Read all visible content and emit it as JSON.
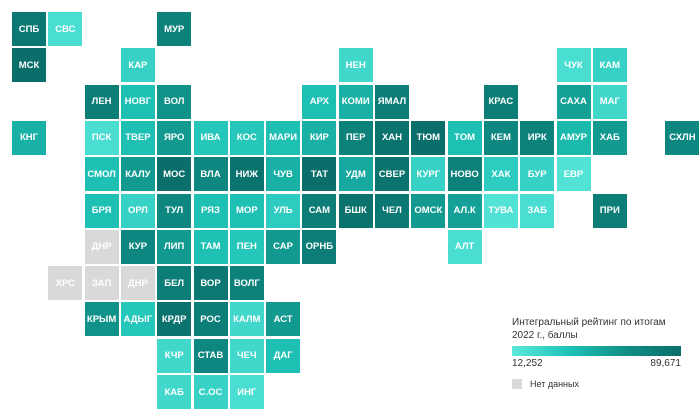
{
  "colors": {
    "low": "#5ce8dc",
    "high": "#0a6e6a",
    "nodata": "#d9d9d9"
  },
  "legend": {
    "title": "Интегральный рейтинг по итогам 2022 г., баллы",
    "min_label": "12,252",
    "max_label": "89,671",
    "nodata_label": "Нет данных"
  },
  "regions": [
    {
      "label": "СПБ",
      "col": 0,
      "row": 0,
      "v": 0.9
    },
    {
      "label": "СВС",
      "col": 1,
      "row": 0,
      "v": 0.1
    },
    {
      "label": "МУР",
      "col": 4,
      "row": 0,
      "v": 0.8
    },
    {
      "label": "МСК",
      "col": 0,
      "row": 1,
      "v": 1.0
    },
    {
      "label": "КАР",
      "col": 3,
      "row": 1,
      "v": 0.2
    },
    {
      "label": "НЕН",
      "col": 9,
      "row": 1,
      "v": 0.15
    },
    {
      "label": "ЧУК",
      "col": 15,
      "row": 1,
      "v": 0.1
    },
    {
      "label": "КАМ",
      "col": 16,
      "row": 1,
      "v": 0.2
    },
    {
      "label": "ЛЕН",
      "col": 2,
      "row": 2,
      "v": 0.85
    },
    {
      "label": "НОВГ",
      "col": 3,
      "row": 2,
      "v": 0.35
    },
    {
      "label": "ВОЛ",
      "col": 4,
      "row": 2,
      "v": 0.65
    },
    {
      "label": "АРХ",
      "col": 8,
      "row": 2,
      "v": 0.35
    },
    {
      "label": "КОМИ",
      "col": 9,
      "row": 2,
      "v": 0.45
    },
    {
      "label": "ЯМАЛ",
      "col": 10,
      "row": 2,
      "v": 0.85
    },
    {
      "label": "КРАС",
      "col": 13,
      "row": 2,
      "v": 0.85
    },
    {
      "label": "САХА",
      "col": 15,
      "row": 2,
      "v": 0.55
    },
    {
      "label": "МАГ",
      "col": 16,
      "row": 2,
      "v": 0.15
    },
    {
      "label": "КНГ",
      "col": 0,
      "row": 3,
      "v": 0.45
    },
    {
      "label": "ПСК",
      "col": 2,
      "row": 3,
      "v": 0.1
    },
    {
      "label": "ТВЕР",
      "col": 3,
      "row": 3,
      "v": 0.35
    },
    {
      "label": "ЯРО",
      "col": 4,
      "row": 3,
      "v": 0.6
    },
    {
      "label": "ИВА",
      "col": 5,
      "row": 3,
      "v": 0.3
    },
    {
      "label": "КОС",
      "col": 6,
      "row": 3,
      "v": 0.3
    },
    {
      "label": "МАРИ",
      "col": 7,
      "row": 3,
      "v": 0.35
    },
    {
      "label": "КИР",
      "col": 8,
      "row": 3,
      "v": 0.45
    },
    {
      "label": "ПЕР",
      "col": 9,
      "row": 3,
      "v": 0.8
    },
    {
      "label": "ХАН",
      "col": 10,
      "row": 3,
      "v": 0.95
    },
    {
      "label": "ТЮМ",
      "col": 11,
      "row": 3,
      "v": 1.0
    },
    {
      "label": "ТОМ",
      "col": 12,
      "row": 3,
      "v": 0.35
    },
    {
      "label": "КЕМ",
      "col": 13,
      "row": 3,
      "v": 0.75
    },
    {
      "label": "ИРК",
      "col": 14,
      "row": 3,
      "v": 0.8
    },
    {
      "label": "АМУР",
      "col": 15,
      "row": 3,
      "v": 0.4
    },
    {
      "label": "ХАБ",
      "col": 16,
      "row": 3,
      "v": 0.6
    },
    {
      "label": "СХЛН",
      "col": 18,
      "row": 3,
      "v": 0.75
    },
    {
      "label": "СМОЛ",
      "col": 2,
      "row": 4,
      "v": 0.35
    },
    {
      "label": "КАЛУ",
      "col": 3,
      "row": 4,
      "v": 0.6
    },
    {
      "label": "МОС",
      "col": 4,
      "row": 4,
      "v": 1.0
    },
    {
      "label": "ВЛА",
      "col": 5,
      "row": 4,
      "v": 0.75
    },
    {
      "label": "НИЖ",
      "col": 6,
      "row": 4,
      "v": 0.95
    },
    {
      "label": "ЧУВ",
      "col": 7,
      "row": 4,
      "v": 0.45
    },
    {
      "label": "ТАТ",
      "col": 8,
      "row": 4,
      "v": 1.0
    },
    {
      "label": "УДМ",
      "col": 9,
      "row": 4,
      "v": 0.5
    },
    {
      "label": "СВЕР",
      "col": 10,
      "row": 4,
      "v": 0.95
    },
    {
      "label": "КУРГ",
      "col": 11,
      "row": 4,
      "v": 0.2
    },
    {
      "label": "НОВО",
      "col": 12,
      "row": 4,
      "v": 0.8
    },
    {
      "label": "ХАК",
      "col": 13,
      "row": 4,
      "v": 0.25
    },
    {
      "label": "БУР",
      "col": 14,
      "row": 4,
      "v": 0.2
    },
    {
      "label": "ЕВР",
      "col": 15,
      "row": 4,
      "v": 0.05
    },
    {
      "label": "БРЯ",
      "col": 2,
      "row": 5,
      "v": 0.35
    },
    {
      "label": "ОРЛ",
      "col": 3,
      "row": 5,
      "v": 0.2
    },
    {
      "label": "ТУЛ",
      "col": 4,
      "row": 5,
      "v": 0.75
    },
    {
      "label": "РЯЗ",
      "col": 5,
      "row": 5,
      "v": 0.35
    },
    {
      "label": "МОР",
      "col": 6,
      "row": 5,
      "v": 0.35
    },
    {
      "label": "УЛЬ",
      "col": 7,
      "row": 5,
      "v": 0.25
    },
    {
      "label": "САМ",
      "col": 8,
      "row": 5,
      "v": 0.85
    },
    {
      "label": "БШК",
      "col": 9,
      "row": 5,
      "v": 0.95
    },
    {
      "label": "ЧЕЛ",
      "col": 10,
      "row": 5,
      "v": 0.9
    },
    {
      "label": "ОМСК",
      "col": 11,
      "row": 5,
      "v": 0.6
    },
    {
      "label": "АЛ.К",
      "col": 12,
      "row": 5,
      "v": 0.55
    },
    {
      "label": "ТУВА",
      "col": 13,
      "row": 5,
      "v": 0.05
    },
    {
      "label": "ЗАБ",
      "col": 14,
      "row": 5,
      "v": 0.1
    },
    {
      "label": "ПРИ",
      "col": 16,
      "row": 5,
      "v": 0.85
    },
    {
      "label": "ДНР",
      "col": 2,
      "row": 6,
      "v": null
    },
    {
      "label": "КУР",
      "col": 3,
      "row": 6,
      "v": 0.75
    },
    {
      "label": "ЛИП",
      "col": 4,
      "row": 6,
      "v": 0.6
    },
    {
      "label": "ТАМ",
      "col": 5,
      "row": 6,
      "v": 0.35
    },
    {
      "label": "ПЕН",
      "col": 6,
      "row": 6,
      "v": 0.3
    },
    {
      "label": "САР",
      "col": 7,
      "row": 6,
      "v": 0.6
    },
    {
      "label": "ОРНБ",
      "col": 8,
      "row": 6,
      "v": 0.85
    },
    {
      "label": "АЛТ",
      "col": 12,
      "row": 6,
      "v": 0.1
    },
    {
      "label": "ХРС",
      "col": 1,
      "row": 7,
      "v": null
    },
    {
      "label": "ЗАП",
      "col": 2,
      "row": 7,
      "v": null
    },
    {
      "label": "ДНР",
      "col": 3,
      "row": 7,
      "v": null
    },
    {
      "label": "БЕЛ",
      "col": 4,
      "row": 7,
      "v": 0.85
    },
    {
      "label": "ВОР",
      "col": 5,
      "row": 7,
      "v": 0.9
    },
    {
      "label": "ВОЛГ",
      "col": 6,
      "row": 7,
      "v": 0.8
    },
    {
      "label": "КРЫМ",
      "col": 2,
      "row": 8,
      "v": 0.65
    },
    {
      "label": "АДЫГ",
      "col": 3,
      "row": 8,
      "v": 0.3
    },
    {
      "label": "КРДР",
      "col": 4,
      "row": 8,
      "v": 0.95
    },
    {
      "label": "РОС",
      "col": 5,
      "row": 8,
      "v": 0.85
    },
    {
      "label": "КАЛМ",
      "col": 6,
      "row": 8,
      "v": 0.15
    },
    {
      "label": "АСТ",
      "col": 7,
      "row": 8,
      "v": 0.6
    },
    {
      "label": "КЧР",
      "col": 4,
      "row": 9,
      "v": 0.15
    },
    {
      "label": "СТАВ",
      "col": 5,
      "row": 9,
      "v": 0.75
    },
    {
      "label": "ЧЕЧ",
      "col": 6,
      "row": 9,
      "v": 0.15
    },
    {
      "label": "ДАГ",
      "col": 7,
      "row": 9,
      "v": 0.35
    },
    {
      "label": "КАБ",
      "col": 4,
      "row": 10,
      "v": 0.15
    },
    {
      "label": "С.ОС",
      "col": 5,
      "row": 10,
      "v": 0.2
    },
    {
      "label": "ИНГ",
      "col": 6,
      "row": 10,
      "v": 0.1
    }
  ]
}
